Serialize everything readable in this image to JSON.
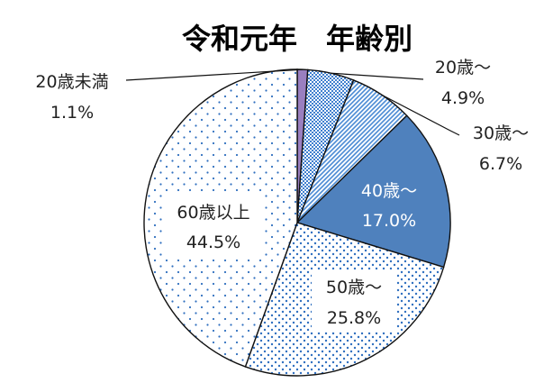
{
  "chart_data": {
    "type": "pie",
    "title": "令和元年　年齢別",
    "slices": [
      {
        "label": "20歳未満",
        "value": 1.1,
        "value_label": "1.1%",
        "fill": "#9a7fc0",
        "pattern": "solid"
      },
      {
        "label": "20歳～",
        "value": 4.9,
        "value_label": "4.9%",
        "fill": "#3f7fcf",
        "pattern": "checker"
      },
      {
        "label": "30歳～",
        "value": 6.7,
        "value_label": "6.7%",
        "fill": "#4a8ad4",
        "pattern": "diagonal"
      },
      {
        "label": "40歳～",
        "value": 17.0,
        "value_label": "17.0%",
        "fill": "#4f81bd",
        "pattern": "solid"
      },
      {
        "label": "50歳～",
        "value": 25.8,
        "value_label": "25.8%",
        "fill": "#2f6fbf",
        "pattern": "dense-dots"
      },
      {
        "label": "60歳以上",
        "value": 44.5,
        "value_label": "44.5%",
        "fill": "#2f6fbf",
        "pattern": "sparse-dots"
      }
    ]
  }
}
